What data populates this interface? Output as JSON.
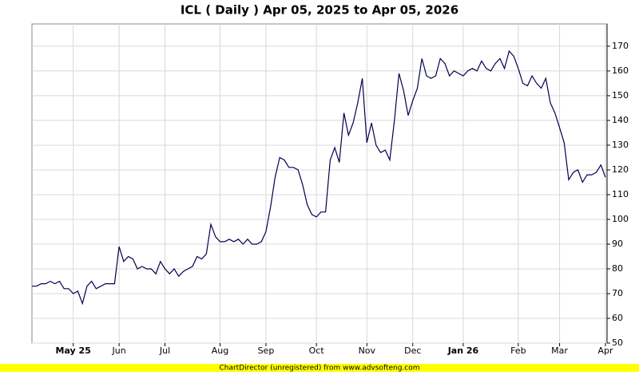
{
  "chart_data": {
    "type": "line",
    "title": "ICL ( Daily ) Apr 05, 2025 to Apr 05, 2026",
    "footer": "ChartDirector (unregistered) from www.advsofteng.com",
    "categories": [
      null,
      null,
      null,
      null,
      null,
      null,
      null,
      null,
      null,
      "May 25",
      null,
      null,
      null,
      null,
      null,
      null,
      null,
      null,
      null,
      "Jun",
      null,
      null,
      null,
      null,
      null,
      null,
      null,
      null,
      null,
      "Jul",
      null,
      null,
      null,
      null,
      null,
      null,
      null,
      null,
      null,
      null,
      null,
      "Aug",
      null,
      null,
      null,
      null,
      null,
      null,
      null,
      null,
      null,
      "Sep",
      null,
      null,
      null,
      null,
      null,
      null,
      null,
      null,
      null,
      null,
      "Oct",
      null,
      null,
      null,
      null,
      null,
      null,
      null,
      null,
      null,
      null,
      "Nov",
      null,
      null,
      null,
      null,
      null,
      null,
      null,
      null,
      null,
      "Dec",
      null,
      null,
      null,
      null,
      null,
      null,
      null,
      null,
      null,
      null,
      "Jan 26",
      null,
      null,
      null,
      null,
      null,
      null,
      null,
      null,
      null,
      null,
      null,
      "Feb",
      null,
      null,
      null,
      null,
      null,
      null,
      null,
      null,
      "Mar",
      null,
      null,
      null,
      null,
      null,
      null,
      null,
      null,
      null,
      "Apr"
    ],
    "series": [
      {
        "name": "ICL",
        "color": "#000050",
        "values": [
          73,
          73,
          74,
          74,
          75,
          74,
          75,
          72,
          72,
          70,
          71,
          66,
          73,
          75,
          72,
          73,
          74,
          74,
          74,
          89,
          83,
          85,
          84,
          80,
          81,
          80,
          80,
          78,
          83,
          80,
          78,
          80,
          77,
          79,
          80,
          81,
          85,
          84,
          86,
          98,
          93,
          91,
          91,
          92,
          91,
          92,
          90,
          92,
          90,
          90,
          91,
          95,
          105,
          117,
          125,
          124,
          121,
          121,
          120,
          114,
          106,
          102,
          101,
          103,
          103,
          124,
          129,
          123,
          143,
          134,
          139,
          147,
          157,
          131,
          139,
          130,
          127,
          128,
          124,
          140,
          159,
          152,
          142,
          148,
          153,
          165,
          158,
          157,
          158,
          165,
          163,
          158,
          160,
          159,
          158,
          160,
          161,
          160,
          164,
          161,
          160,
          163,
          165,
          161,
          168,
          166,
          161,
          155,
          154,
          158,
          155,
          153,
          157,
          147,
          143,
          137,
          131,
          116,
          119,
          120,
          115,
          118,
          118,
          119,
          122,
          117
        ]
      }
    ],
    "ylim": [
      50,
      179
    ],
    "yticks": [
      50,
      60,
      70,
      80,
      90,
      100,
      110,
      120,
      130,
      140,
      150,
      160,
      170
    ],
    "grid": true
  }
}
